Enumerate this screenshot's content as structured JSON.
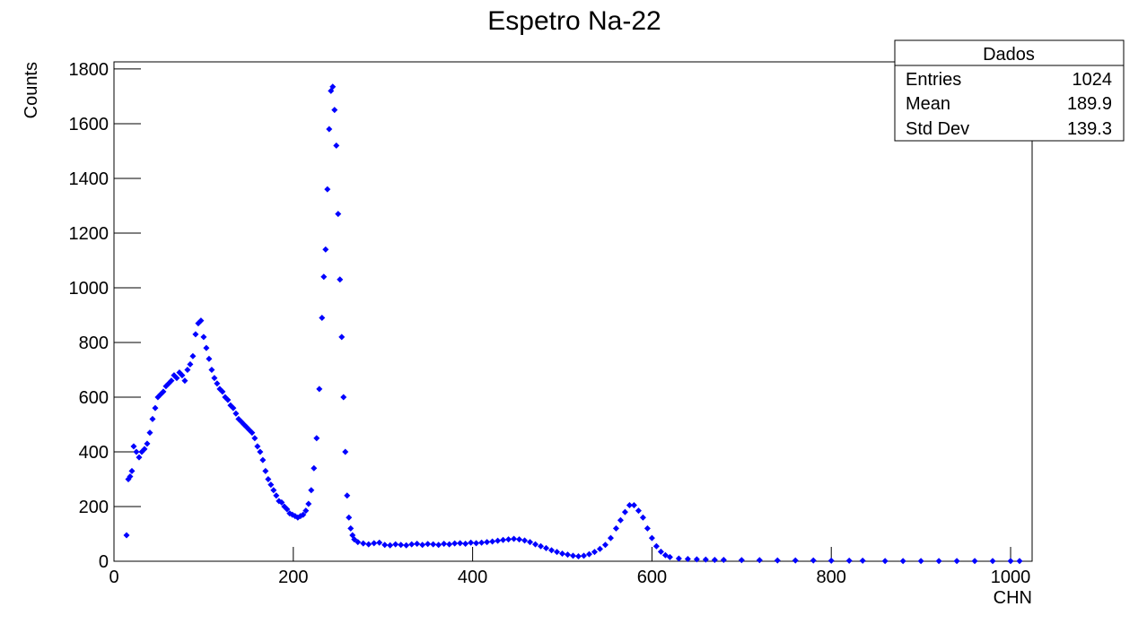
{
  "chart_data": {
    "type": "scatter",
    "title": "Espetro Na-22",
    "x_label": "CHN",
    "y_label": "Counts",
    "color": "#0000ff",
    "x": [
      14,
      16,
      18,
      20,
      22,
      25,
      28,
      31,
      34,
      37,
      40,
      43,
      46,
      49,
      52,
      55,
      58,
      61,
      64,
      67,
      70,
      73,
      76,
      79,
      82,
      85,
      88,
      91,
      94,
      97,
      100,
      103,
      106,
      109,
      112,
      115,
      118,
      121,
      124,
      127,
      130,
      133,
      136,
      139,
      142,
      145,
      148,
      151,
      154,
      157,
      160,
      163,
      166,
      169,
      172,
      175,
      178,
      181,
      184,
      187,
      190,
      193,
      196,
      199,
      202,
      205,
      208,
      211,
      214,
      217,
      220,
      223,
      226,
      229,
      232,
      234,
      236,
      238,
      240,
      242,
      244,
      246,
      248,
      250,
      252,
      254,
      256,
      258,
      260,
      262,
      264,
      266,
      268,
      272,
      278,
      284,
      290,
      296,
      302,
      308,
      314,
      320,
      326,
      332,
      338,
      344,
      350,
      356,
      362,
      368,
      374,
      380,
      386,
      392,
      398,
      404,
      410,
      416,
      422,
      428,
      434,
      440,
      446,
      452,
      458,
      464,
      470,
      476,
      482,
      488,
      494,
      500,
      506,
      512,
      518,
      524,
      530,
      536,
      542,
      548,
      554,
      560,
      565,
      570,
      575,
      580,
      585,
      590,
      595,
      600,
      605,
      610,
      615,
      620,
      630,
      640,
      650,
      660,
      670,
      680,
      700,
      720,
      740,
      760,
      780,
      800,
      820,
      835,
      860,
      880,
      900,
      920,
      940,
      960,
      980,
      1000,
      1010
    ],
    "values": [
      95,
      300,
      310,
      330,
      420,
      400,
      380,
      400,
      410,
      430,
      470,
      520,
      560,
      600,
      610,
      620,
      640,
      650,
      660,
      680,
      670,
      690,
      680,
      660,
      700,
      720,
      750,
      830,
      870,
      880,
      820,
      780,
      740,
      700,
      670,
      650,
      630,
      620,
      600,
      590,
      570,
      560,
      540,
      520,
      510,
      500,
      490,
      480,
      470,
      450,
      420,
      400,
      370,
      330,
      300,
      280,
      260,
      240,
      220,
      215,
      200,
      190,
      175,
      170,
      165,
      160,
      165,
      170,
      185,
      210,
      260,
      340,
      450,
      630,
      890,
      1040,
      1140,
      1360,
      1580,
      1720,
      1735,
      1650,
      1520,
      1270,
      1030,
      820,
      600,
      400,
      240,
      160,
      120,
      95,
      80,
      70,
      65,
      62,
      66,
      68,
      60,
      58,
      62,
      60,
      58,
      62,
      64,
      60,
      63,
      62,
      60,
      64,
      62,
      65,
      66,
      64,
      68,
      66,
      68,
      70,
      72,
      75,
      78,
      80,
      82,
      80,
      76,
      70,
      62,
      55,
      48,
      40,
      34,
      28,
      24,
      20,
      18,
      20,
      26,
      34,
      45,
      60,
      85,
      120,
      150,
      180,
      205,
      205,
      185,
      160,
      120,
      85,
      55,
      35,
      22,
      15,
      10,
      8,
      7,
      6,
      5,
      5,
      4,
      4,
      3,
      3,
      3,
      2,
      2,
      2,
      1,
      1,
      1,
      1,
      1,
      1,
      1,
      1,
      1
    ],
    "xlim": [
      0,
      1024
    ],
    "ylim": [
      0,
      1826
    ],
    "xticks": [
      0,
      200,
      400,
      600,
      800,
      1000
    ],
    "yticks": [
      0,
      200,
      400,
      600,
      800,
      1000,
      1200,
      1400,
      1600,
      1800
    ]
  },
  "stats_box": {
    "title": "Dados",
    "rows": [
      [
        "Entries",
        "1024"
      ],
      [
        "Mean",
        "189.9"
      ],
      [
        "Std Dev",
        "139.3"
      ]
    ]
  }
}
